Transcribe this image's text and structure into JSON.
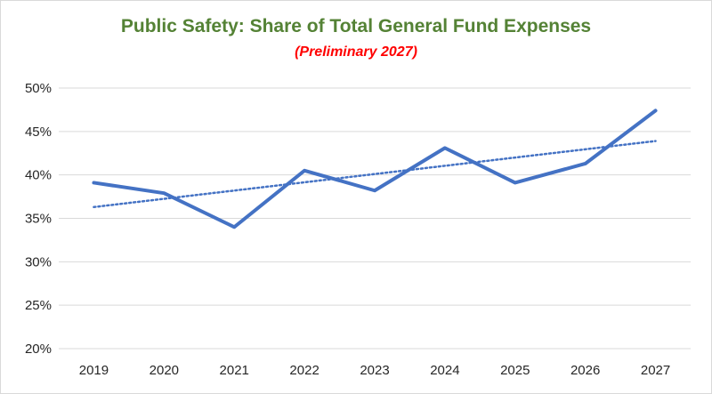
{
  "chart_data": {
    "type": "line",
    "title": "Public Safety: Share of Total General Fund Expenses",
    "subtitle": "(Preliminary 2027)",
    "xlabel": "",
    "ylabel": "",
    "categories": [
      "2019",
      "2020",
      "2021",
      "2022",
      "2023",
      "2024",
      "2025",
      "2026",
      "2027"
    ],
    "series": [
      {
        "values": [
          0.391,
          0.379,
          0.34,
          0.405,
          0.382,
          0.431,
          0.391,
          0.413,
          0.474
        ],
        "color": "#4472c4",
        "style": "solid"
      }
    ],
    "trendline": {
      "type": "linear",
      "start": 0.363,
      "end": 0.439,
      "color": "#4472c4",
      "style": "dotted"
    },
    "ylim": [
      0.2,
      0.5
    ],
    "yticks": [
      "20%",
      "25%",
      "30%",
      "35%",
      "40%",
      "45%",
      "50%"
    ],
    "grid": true,
    "legend": "none"
  }
}
